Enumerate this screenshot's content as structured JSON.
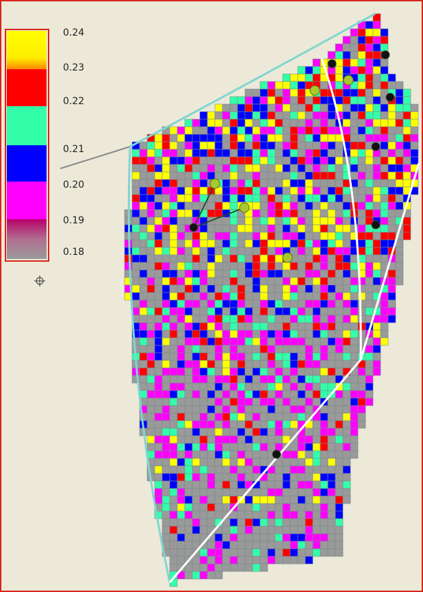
{
  "legend": {
    "labels": [
      "0.24",
      "0.23",
      "0.22",
      "0.21",
      "0.20",
      "0.19",
      "0.18"
    ]
  }
}
